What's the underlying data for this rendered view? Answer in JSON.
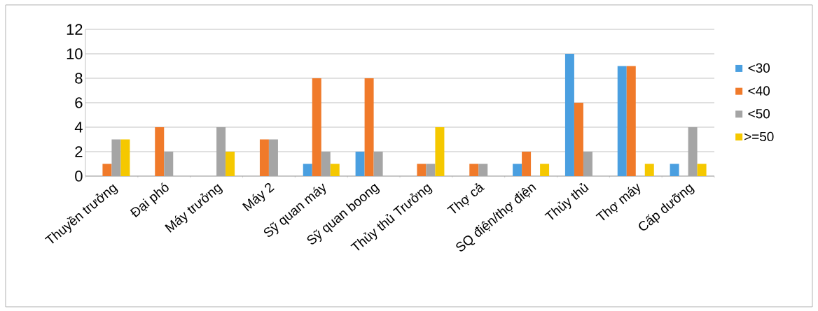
{
  "chart_data": {
    "type": "bar",
    "categories": [
      "Thuyền trưởng",
      "Đại phó",
      "Máy trưởng",
      "Máy 2",
      "Sỹ quan máy",
      "Sỹ quan boong",
      "Thủy thủ Trưởng",
      "Thợ cả",
      "SQ điện/thợ điện",
      "Thủy thủ",
      "Thợ máy",
      "Cấp dưỡng"
    ],
    "series": [
      {
        "name": "<30",
        "color": "#4a9fe0",
        "values": [
          0,
          0,
          0,
          0,
          1,
          2,
          0,
          0,
          1,
          10,
          9,
          1
        ]
      },
      {
        "name": "<40",
        "color": "#f07a2a",
        "values": [
          1,
          4,
          0,
          3,
          8,
          8,
          1,
          1,
          2,
          6,
          9,
          0
        ]
      },
      {
        "name": "<50",
        "color": "#a5a5a5",
        "values": [
          3,
          2,
          4,
          3,
          2,
          2,
          1,
          1,
          0,
          2,
          0,
          4
        ]
      },
      {
        "name": ">=50",
        "color": "#f5c800",
        "values": [
          3,
          0,
          2,
          0,
          1,
          0,
          4,
          0,
          1,
          0,
          1,
          1
        ]
      }
    ],
    "ylim": [
      0,
      12
    ],
    "yticks": [
      0,
      2,
      4,
      6,
      8,
      10,
      12
    ],
    "grid": "y",
    "legend": "right"
  }
}
